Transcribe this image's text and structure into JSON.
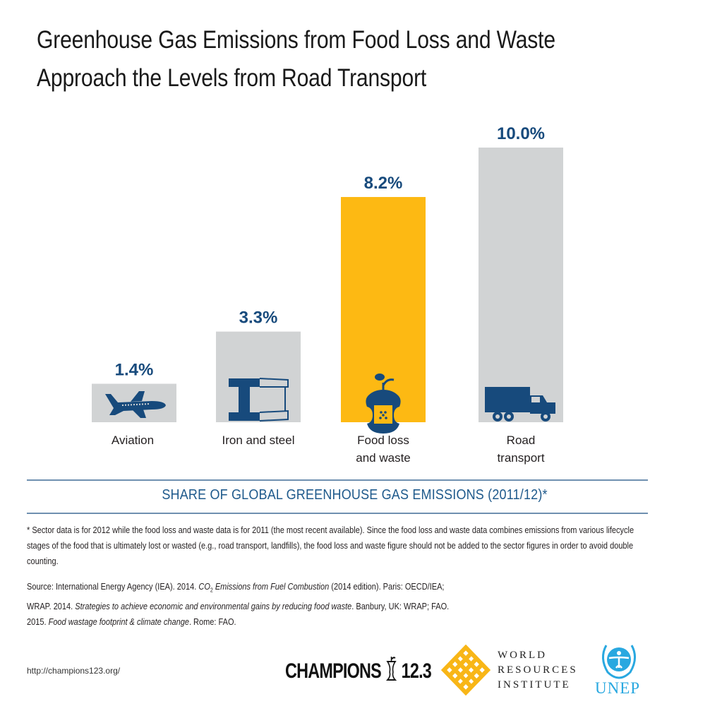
{
  "title_lines": [
    "Greenhouse Gas Emissions from Food Loss and Waste",
    "Approach the Levels from Road Transport"
  ],
  "chart_data": {
    "type": "bar",
    "title": "Greenhouse Gas Emissions from Food Loss and Waste Approach the Levels from Road Transport",
    "xlabel": "SHARE OF GLOBAL GREENHOUSE GAS EMISSIONS (2011/12)*",
    "ylabel": "",
    "ylim": [
      0,
      10
    ],
    "grid": false,
    "categories": [
      "Aviation",
      "Iron and steel",
      "Food loss and waste",
      "Road transport"
    ],
    "category_label_lines": [
      [
        "Aviation"
      ],
      [
        "Iron and steel"
      ],
      [
        "Food loss",
        "and waste"
      ],
      [
        "Road",
        "transport"
      ]
    ],
    "values": [
      1.4,
      3.3,
      8.2,
      10.0
    ],
    "value_labels": [
      "1.4%",
      "3.3%",
      "8.2%",
      "10.0%"
    ],
    "icons": [
      "airplane-icon",
      "steel-beam-icon",
      "apple-core-icon",
      "truck-icon"
    ],
    "bar_colors": [
      "#d1d3d4",
      "#d1d3d4",
      "#fdb913",
      "#d1d3d4"
    ],
    "label_color": "#174a7c",
    "icon_color": "#174a7c"
  },
  "subtitle": "SHARE OF GLOBAL GREENHOUSE GAS EMISSIONS (2011/12)*",
  "footnote": "* Sector data is for 2012 while the food loss and waste data is for 2011 (the most recent available). Since the food loss and waste data combines emissions from various lifecycle stages of the food that is ultimately lost or wasted (e.g., road transport, landfills), the food loss and waste figure should not be added to the sector figures in order to avoid double counting.",
  "source": {
    "p1": "Source:  International Energy Agency (IEA). 2014. ",
    "i1": "CO",
    "sub": "2",
    "i1b": " Emissions from Fuel Combustion",
    "p2": " (2014 edition). Paris: OECD/IEA; WRAP. 2014. ",
    "i2": "Strategies to achieve economic and environmental gains by reducing food waste",
    "p3": ". Banbury, UK: WRAP; FAO. 2015. ",
    "i3": "Food wastage footprint & climate change",
    "p4": ". Rome: FAO."
  },
  "footer": {
    "url": "http://champions123.org/",
    "champions_left": "CHAMPIONS",
    "champions_right": "12.3",
    "wri_lines": [
      "WORLD",
      "RESOURCES",
      "INSTITUTE"
    ],
    "unep": "UNEP",
    "colors": {
      "wri": "#f8b617",
      "unep": "#29a8e0"
    }
  }
}
